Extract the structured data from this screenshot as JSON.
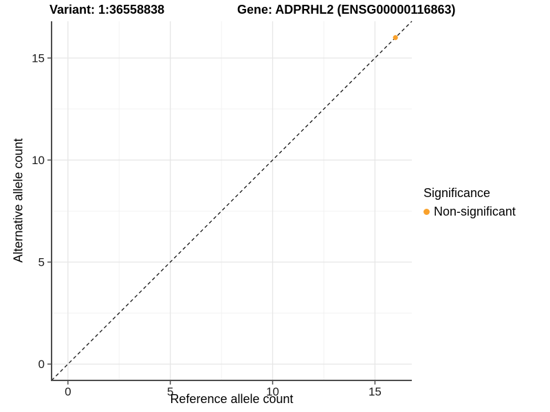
{
  "title": {
    "variant": "Variant: 1:36558838",
    "gene": "Gene: ADPRHL2 (ENSG00000116863)"
  },
  "chart_data": {
    "type": "scatter",
    "title": "Variant: 1:36558838  Gene: ADPRHL2 (ENSG00000116863)",
    "xlabel": "Reference allele count",
    "ylabel": "Alternative allele count",
    "xlim": [
      -0.8,
      16.8
    ],
    "ylim": [
      -0.8,
      16.8
    ],
    "xticks": [
      0,
      5,
      10,
      15
    ],
    "yticks": [
      0,
      5,
      10,
      15
    ],
    "xminor": [
      2.5,
      7.5,
      12.5
    ],
    "yminor": [
      2.5,
      7.5,
      12.5
    ],
    "grid": "major+minor",
    "series": [
      {
        "name": "Non-significant",
        "color": "#F9A12B",
        "points": [
          [
            16,
            16
          ]
        ]
      }
    ],
    "identity_line": {
      "from": [
        -0.8,
        -0.8
      ],
      "to": [
        16.8,
        16.8
      ],
      "style": "dashed",
      "color": "#111111"
    },
    "legend": {
      "position": "right",
      "title": "Significance",
      "items": [
        {
          "label": "Non-significant",
          "color": "#F9A12B"
        }
      ]
    }
  },
  "colors": {
    "axis_line": "#4D4D4D",
    "tick_mark": "#4D4D4D",
    "grid_major": "#E6E6E6",
    "grid_minor": "#F2F2F2",
    "tick_label": "#1A1A1A",
    "point_orange": "#F9A12B",
    "background": "#FFFFFF"
  }
}
